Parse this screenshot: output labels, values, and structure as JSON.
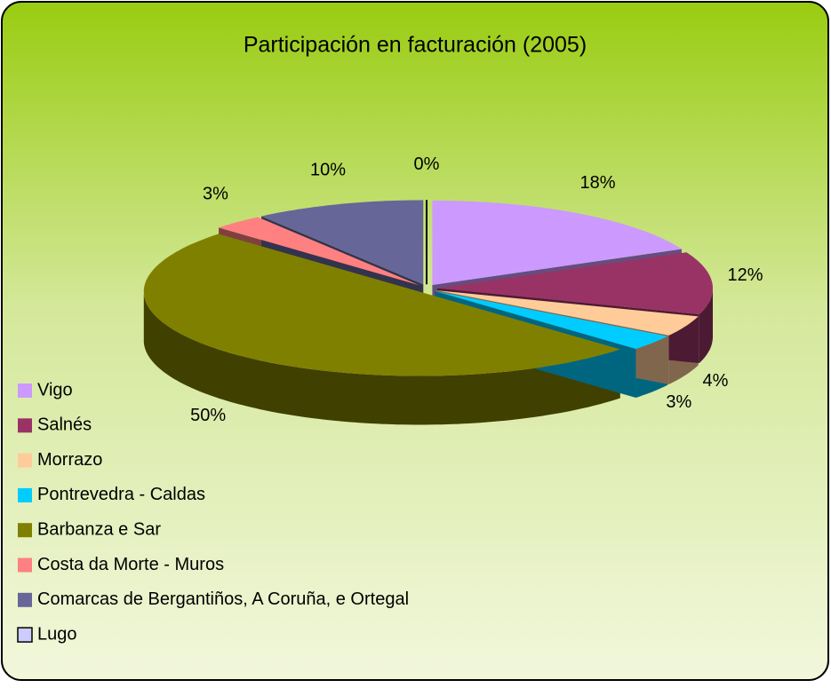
{
  "chart_data": {
    "type": "pie3d",
    "title": "Participación en facturación (2005)",
    "categories": [
      "Vigo",
      "Salnés",
      "Morrazo",
      "Pontrevedra - Caldas",
      "Barbanza  e Sar",
      "Costa da Morte - Muros",
      "Comarcas de Bergantiños, A Coruña, e Ortegal",
      "Lugo"
    ],
    "values": [
      18,
      12,
      4,
      3,
      50,
      3,
      10,
      0
    ],
    "value_labels": [
      "18%",
      "12%",
      "4%",
      "3%",
      "50%",
      "3%",
      "10%",
      "0%"
    ],
    "colors": [
      "#cc99ff",
      "#993366",
      "#ffcc99",
      "#00ccff",
      "#808000",
      "#ff8080",
      "#666699",
      "#ccccff"
    ],
    "legend": "left"
  }
}
